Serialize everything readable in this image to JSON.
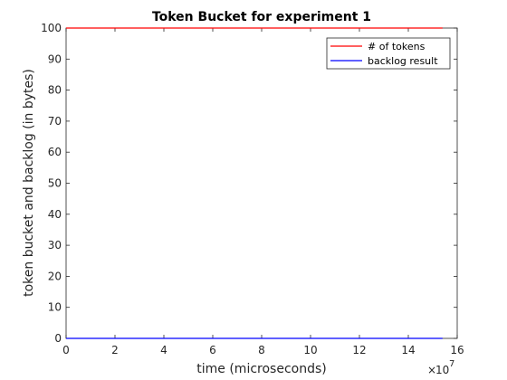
{
  "chart_data": {
    "type": "line",
    "title": "Token Bucket for experiment 1",
    "xlabel": "time (microseconds)",
    "ylabel": "token bucket and backlog (in bytes)",
    "xlim": [
      0,
      16
    ],
    "ylim": [
      0,
      100
    ],
    "x_multiplier_label": "10",
    "x_multiplier_exponent": "7",
    "x_multiplier_prefix": "×",
    "xticks": [
      "0",
      "2",
      "4",
      "6",
      "8",
      "10",
      "12",
      "14",
      "16"
    ],
    "yticks": [
      "0",
      "10",
      "20",
      "30",
      "40",
      "50",
      "60",
      "70",
      "80",
      "90",
      "100"
    ],
    "grid": false,
    "legend_position": "top-right",
    "series": [
      {
        "name": "# of tokens",
        "color": "#ff0000",
        "x": [
          0,
          15.4
        ],
        "y": [
          100,
          100
        ]
      },
      {
        "name": "backlog result",
        "color": "#0000ff",
        "x": [
          0,
          15.4
        ],
        "y": [
          0,
          0
        ]
      }
    ]
  }
}
